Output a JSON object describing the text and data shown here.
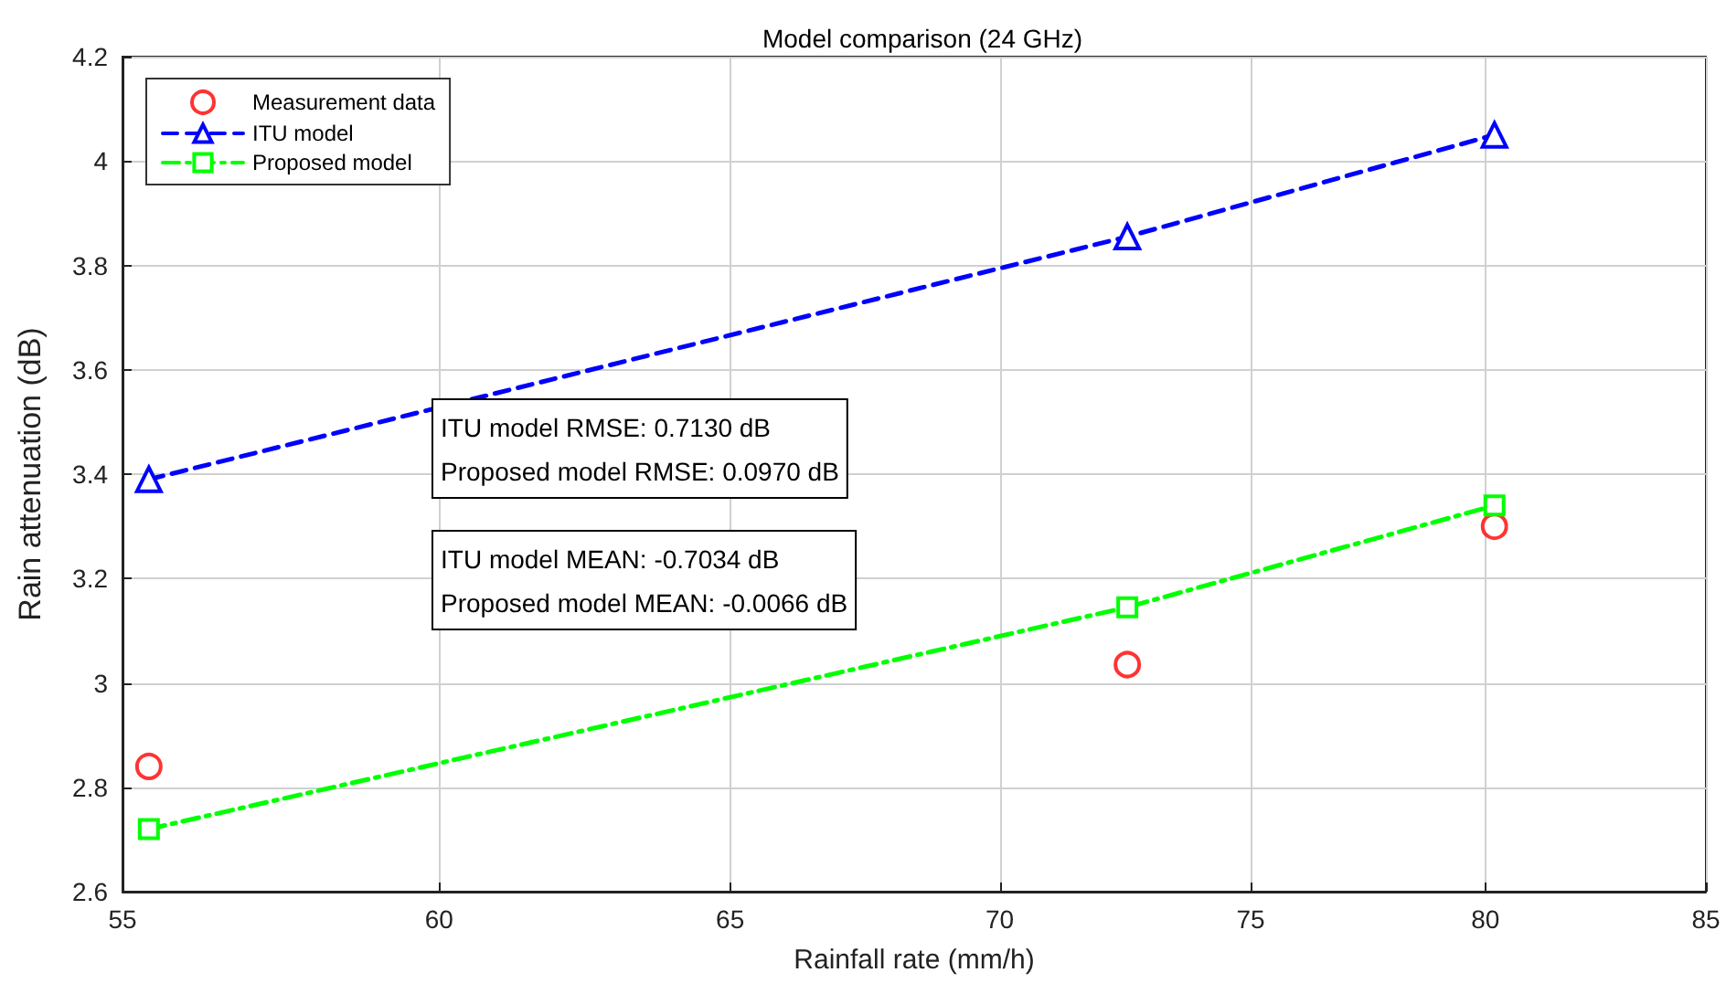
{
  "chart_data": {
    "type": "line",
    "title": "Model comparison (24 GHz)",
    "xlabel": "Rainfall rate (mm/h)",
    "ylabel": "Rain attenuation (dB)",
    "x": [
      55.4,
      72.5,
      80.2
    ],
    "series": [
      {
        "name": "Measurement data",
        "type": "scatter",
        "color": "#ff0000",
        "marker": "circle",
        "values": [
          2.84,
          3.035,
          3.3
        ]
      },
      {
        "name": "ITU model",
        "color": "#0000ff",
        "marker": "triangle",
        "line_style": "dashed",
        "values": [
          3.39,
          3.855,
          4.05
        ]
      },
      {
        "name": "Proposed model",
        "color": "#00ff00",
        "marker": "square",
        "line_style": "dashdot",
        "values": [
          2.72,
          3.145,
          3.34
        ]
      }
    ],
    "log": "x",
    "xlim": [
      55,
      85
    ],
    "xticks": [
      55,
      60,
      65,
      70,
      75,
      80,
      85
    ],
    "ylim": [
      2.6,
      4.2
    ],
    "yticks": [
      2.6,
      2.8,
      3,
      3.2,
      3.4,
      3.6,
      3.8,
      4,
      4.2
    ],
    "grid": true,
    "legend": "top left",
    "annotations": [
      "ITU model RMSE: 0.7130 dB\nProposed model RMSE: 0.0970 dB",
      "ITU model MEAN: -0.7034 dB\nProposed model MEAN: -0.0066 dB"
    ]
  }
}
